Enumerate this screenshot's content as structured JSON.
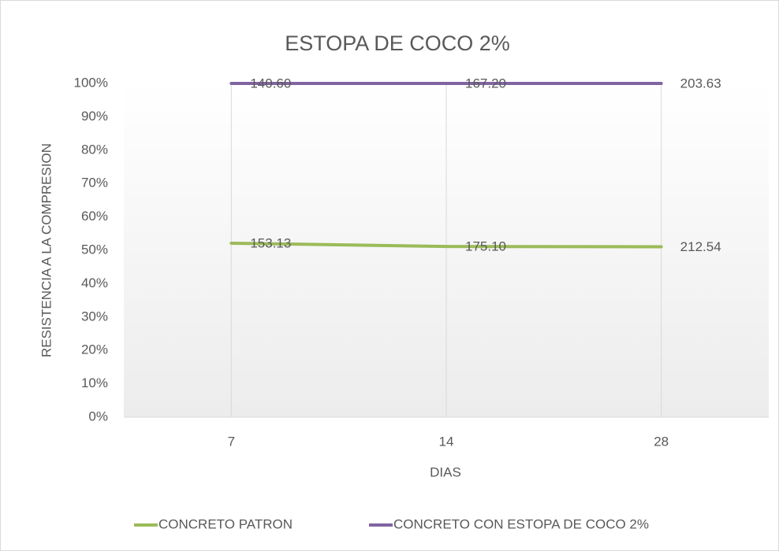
{
  "chart_data": {
    "type": "line",
    "stacking": "percent",
    "title": "ESTOPA DE COCO 2%",
    "y_label": "RESISTENCIA A LA COMPRESION",
    "x_label": "DIAS",
    "categories": [
      "7",
      "14",
      "28"
    ],
    "series": [
      {
        "name": "CONCRETO PATRON",
        "color": "#9bbb59",
        "values": [
          153.13,
          175.1,
          212.54
        ],
        "value_labels": [
          "153.13",
          "175.10",
          "212.54"
        ]
      },
      {
        "name": "CONCRETO CON ESTOPA DE COCO 2%",
        "color": "#8064a2",
        "values": [
          140.6,
          167.2,
          203.63
        ],
        "value_labels": [
          "140.60",
          "167.20",
          "203.63"
        ]
      }
    ],
    "ylim": [
      0,
      100
    ],
    "yticks": [
      {
        "value": 0,
        "label": "0%"
      },
      {
        "value": 10,
        "label": "10%"
      },
      {
        "value": 20,
        "label": "20%"
      },
      {
        "value": 30,
        "label": "30%"
      },
      {
        "value": 40,
        "label": "40%"
      },
      {
        "value": 50,
        "label": "50%"
      },
      {
        "value": 60,
        "label": "60%"
      },
      {
        "value": 70,
        "label": "70%"
      },
      {
        "value": 80,
        "label": "80%"
      },
      {
        "value": 90,
        "label": "90%"
      },
      {
        "value": 100,
        "label": "100%"
      }
    ],
    "grid": "x",
    "legend": "bottom"
  }
}
